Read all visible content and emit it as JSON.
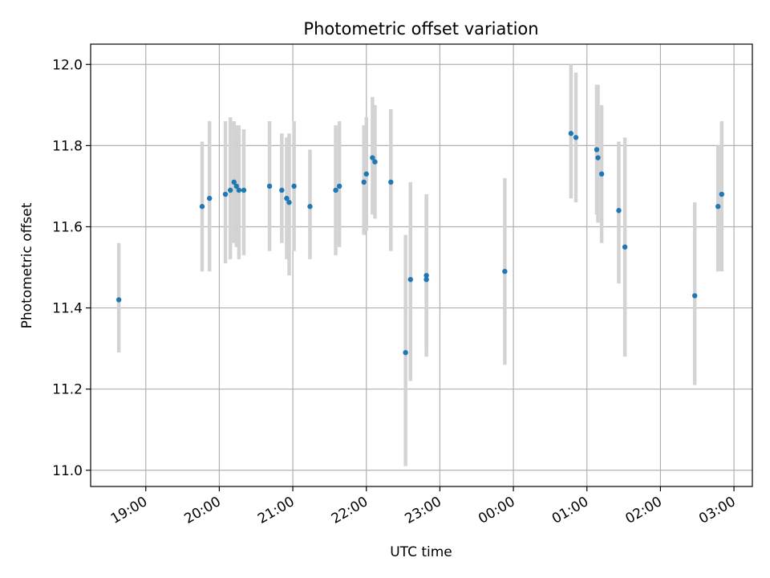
{
  "chart_data": {
    "type": "scatter",
    "title": "Photometric offset variation",
    "xlabel": "UTC time",
    "ylabel": "Photometric offset",
    "x_scale": "time",
    "x_start": "18:15",
    "x_end": "03:15",
    "xticks": [
      "19:00",
      "20:00",
      "21:00",
      "22:00",
      "23:00",
      "00:00",
      "01:00",
      "02:00",
      "03:00"
    ],
    "ylim": [
      10.96,
      12.05
    ],
    "yticks": [
      "11.0",
      "11.2",
      "11.4",
      "11.6",
      "11.8",
      "12.0"
    ],
    "grid": true,
    "colors": {
      "points": "#1f77b4",
      "errorbars": "#d3d3d3",
      "grid": "#b0b0b0"
    },
    "points": [
      {
        "time": "18:38",
        "y": 11.42,
        "ylo": 11.29,
        "yhi": 11.56
      },
      {
        "time": "19:46",
        "y": 11.65,
        "ylo": 11.49,
        "yhi": 11.81
      },
      {
        "time": "19:52",
        "y": 11.67,
        "ylo": 11.49,
        "yhi": 11.86
      },
      {
        "time": "20:05",
        "y": 11.68,
        "ylo": 11.51,
        "yhi": 11.86
      },
      {
        "time": "20:09",
        "y": 11.69,
        "ylo": 11.52,
        "yhi": 11.87
      },
      {
        "time": "20:12",
        "y": 11.71,
        "ylo": 11.56,
        "yhi": 11.86
      },
      {
        "time": "20:14",
        "y": 11.7,
        "ylo": 11.55,
        "yhi": 11.85
      },
      {
        "time": "20:16",
        "y": 11.69,
        "ylo": 11.52,
        "yhi": 11.85
      },
      {
        "time": "20:20",
        "y": 11.69,
        "ylo": 11.53,
        "yhi": 11.84
      },
      {
        "time": "20:41",
        "y": 11.7,
        "ylo": 11.54,
        "yhi": 11.86
      },
      {
        "time": "20:51",
        "y": 11.69,
        "ylo": 11.56,
        "yhi": 11.83
      },
      {
        "time": "20:55",
        "y": 11.67,
        "ylo": 11.52,
        "yhi": 11.82
      },
      {
        "time": "20:57",
        "y": 11.66,
        "ylo": 11.48,
        "yhi": 11.83
      },
      {
        "time": "21:01",
        "y": 11.7,
        "ylo": 11.54,
        "yhi": 11.86
      },
      {
        "time": "21:14",
        "y": 11.65,
        "ylo": 11.52,
        "yhi": 11.79
      },
      {
        "time": "21:35",
        "y": 11.69,
        "ylo": 11.53,
        "yhi": 11.85
      },
      {
        "time": "21:38",
        "y": 11.7,
        "ylo": 11.55,
        "yhi": 11.86
      },
      {
        "time": "21:58",
        "y": 11.71,
        "ylo": 11.58,
        "yhi": 11.85
      },
      {
        "time": "22:00",
        "y": 11.73,
        "ylo": 11.59,
        "yhi": 11.87
      },
      {
        "time": "22:05",
        "y": 11.77,
        "ylo": 11.63,
        "yhi": 11.92
      },
      {
        "time": "22:07",
        "y": 11.76,
        "ylo": 11.62,
        "yhi": 11.9
      },
      {
        "time": "22:20",
        "y": 11.71,
        "ylo": 11.54,
        "yhi": 11.89
      },
      {
        "time": "22:32",
        "y": 11.29,
        "ylo": 11.01,
        "yhi": 11.58
      },
      {
        "time": "22:36",
        "y": 11.47,
        "ylo": 11.22,
        "yhi": 11.71
      },
      {
        "time": "22:49",
        "y": 11.47,
        "ylo": 11.28,
        "yhi": 11.68
      },
      {
        "time": "22:49",
        "y": 11.48,
        "ylo": 11.3,
        "yhi": 11.68
      },
      {
        "time": "23:53",
        "y": 11.49,
        "ylo": 11.26,
        "yhi": 11.72
      },
      {
        "time": "00:47",
        "y": 11.83,
        "ylo": 11.67,
        "yhi": 12.0
      },
      {
        "time": "00:51",
        "y": 11.82,
        "ylo": 11.66,
        "yhi": 11.98
      },
      {
        "time": "01:08",
        "y": 11.79,
        "ylo": 11.63,
        "yhi": 11.95
      },
      {
        "time": "01:09",
        "y": 11.77,
        "ylo": 11.61,
        "yhi": 11.95
      },
      {
        "time": "01:12",
        "y": 11.73,
        "ylo": 11.56,
        "yhi": 11.9
      },
      {
        "time": "01:26",
        "y": 11.64,
        "ylo": 11.46,
        "yhi": 11.81
      },
      {
        "time": "01:31",
        "y": 11.55,
        "ylo": 11.28,
        "yhi": 11.82
      },
      {
        "time": "02:28",
        "y": 11.43,
        "ylo": 11.21,
        "yhi": 11.66
      },
      {
        "time": "02:47",
        "y": 11.65,
        "ylo": 11.49,
        "yhi": 11.8
      },
      {
        "time": "02:50",
        "y": 11.68,
        "ylo": 11.49,
        "yhi": 11.86
      }
    ]
  }
}
